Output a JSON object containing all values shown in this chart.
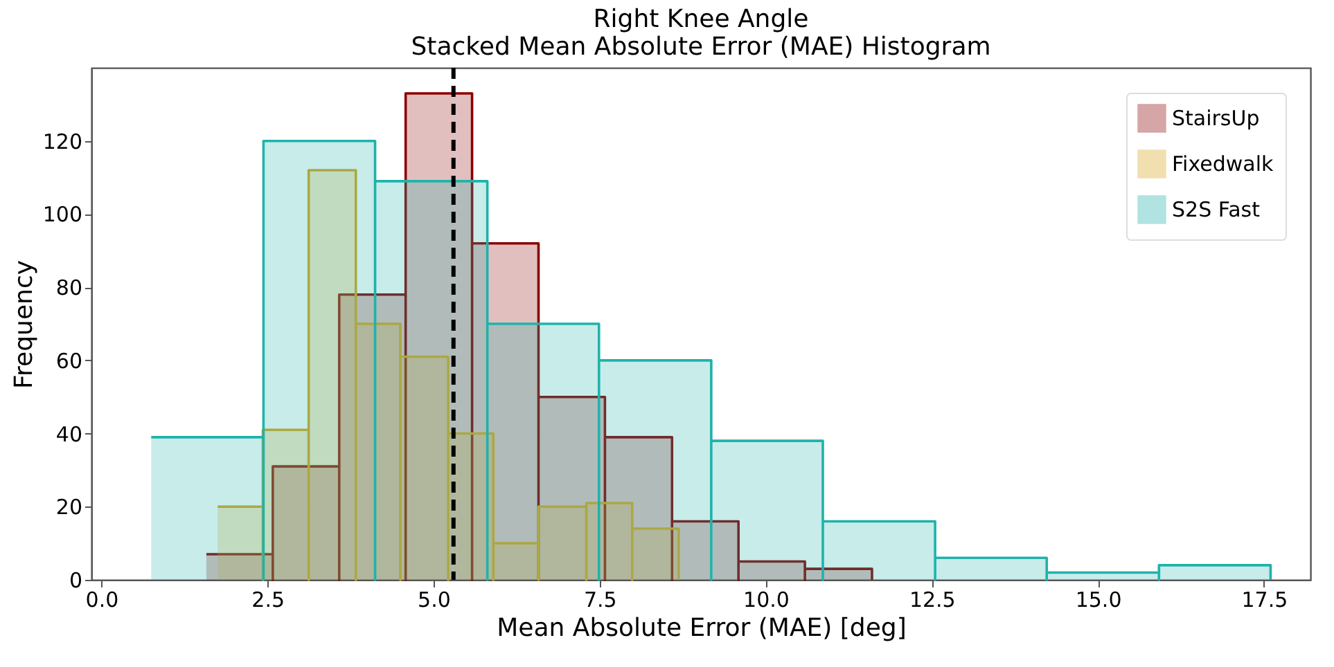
{
  "chart_data": {
    "type": "area",
    "title": "Right Knee Angle",
    "subtitle": "Stacked Mean Absolute Error (MAE) Histogram",
    "xlabel": "Mean Absolute Error (MAE) [deg]",
    "ylabel": "Frequency",
    "series": [
      {
        "name": "StairsUp",
        "color": "#8b0000",
        "x": [
          1.58,
          2.58,
          3.58,
          4.58,
          5.58,
          6.58,
          7.58,
          8.59,
          9.59,
          10.59,
          11.6
        ],
        "values": [
          7,
          31,
          78,
          133,
          92,
          50,
          39,
          16,
          5,
          3,
          0
        ]
      },
      {
        "name": "Fixedwalk",
        "color": "#daa520",
        "x": [
          1.75,
          2.43,
          3.12,
          3.83,
          4.5,
          5.22,
          5.9,
          6.58,
          7.3,
          7.99,
          8.69
        ],
        "values": [
          20,
          41,
          112,
          70,
          61,
          40,
          10,
          20,
          21,
          14,
          0
        ]
      },
      {
        "name": "S2S Fast",
        "color": "#20b2aa",
        "x": [
          0.75,
          2.44,
          4.12,
          5.81,
          7.49,
          9.18,
          10.86,
          12.55,
          14.23,
          15.92,
          17.6
        ],
        "values": [
          39,
          120,
          109,
          70,
          60,
          38,
          16,
          6,
          2,
          4,
          0
        ]
      }
    ],
    "xlim": [
      -0.15,
      18.2
    ],
    "ylim": [
      0,
      140
    ],
    "xticks": [
      {
        "value": 0,
        "label": "0.0"
      },
      {
        "value": 2.5,
        "label": "2.5"
      },
      {
        "value": 5,
        "label": "5.0"
      },
      {
        "value": 7.5,
        "label": "7.5"
      },
      {
        "value": 10,
        "label": "10.0"
      },
      {
        "value": 12.5,
        "label": "12.5"
      },
      {
        "value": 15,
        "label": "15.0"
      },
      {
        "value": 17.5,
        "label": "17.5"
      }
    ],
    "yticks": [
      0,
      20,
      40,
      60,
      80,
      100,
      120
    ],
    "ref_lines": [
      {
        "axis": "x",
        "value": 5.3,
        "color": "#000000",
        "line_style": "dashed"
      }
    ],
    "grid": false,
    "legend": "top right"
  }
}
